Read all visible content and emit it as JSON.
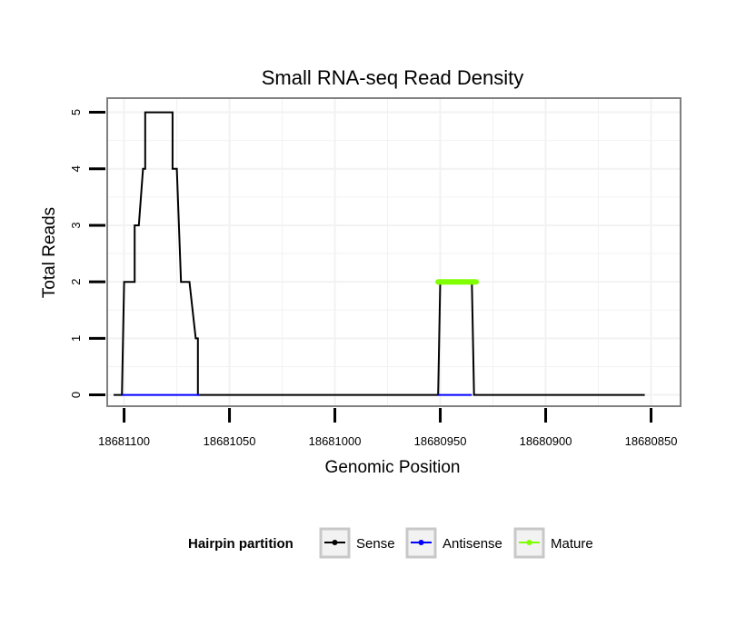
{
  "chart_data": {
    "type": "line",
    "title": "Small RNA-seq Read Density",
    "xlabel": "Genomic Position",
    "ylabel": "Total Reads",
    "xlim": [
      18681108,
      18680836
    ],
    "ylim": [
      -0.2,
      5.25
    ],
    "x_reversed": true,
    "xticks": [
      18681100,
      18681050,
      18681000,
      18680950,
      18680900,
      18680850
    ],
    "xtick_labels": [
      "18681100",
      "18681050",
      "18681000",
      "18680950",
      "18680900",
      "18680850"
    ],
    "yticks": [
      0,
      1,
      2,
      3,
      4,
      5
    ],
    "ytick_labels": [
      "0",
      "1",
      "2",
      "3",
      "4",
      "5"
    ],
    "grid": true,
    "legend": {
      "title": "Hairpin partition",
      "position": "bottom",
      "entries": [
        {
          "name": "Sense",
          "color": "#000000"
        },
        {
          "name": "Antisense",
          "color": "#0000ff"
        },
        {
          "name": "Mature",
          "color": "#7fff00"
        }
      ]
    },
    "series": [
      {
        "name": "Sense",
        "color": "#000000",
        "x": [
          18681105,
          18681101,
          18681100,
          18681097,
          18681097,
          18681095,
          18681095,
          18681093,
          18681093,
          18681091,
          18681091,
          18681090,
          18681090,
          18681088,
          18681088,
          18681077,
          18681077,
          18681075,
          18681075,
          18681073,
          18681073,
          18681071,
          18681071,
          18681069,
          18681069,
          18681066,
          18681066,
          18681065,
          18681065,
          18681063,
          18681063,
          18681050,
          18681000,
          18680951,
          18680950,
          18680935,
          18680934,
          18680900,
          18680853
        ],
        "y": [
          0,
          0,
          2,
          2,
          2,
          2,
          3,
          3,
          3,
          4,
          4,
          4,
          5,
          5,
          5,
          5,
          4,
          4,
          4,
          2,
          2,
          2,
          2,
          2,
          2,
          1,
          1,
          1,
          0,
          0,
          0,
          0,
          0,
          0,
          2,
          2,
          0,
          0,
          0
        ]
      },
      {
        "name": "Antisense",
        "color": "#0000ff",
        "x": [
          18681101,
          18681064
        ],
        "y": [
          0,
          0
        ]
      },
      {
        "name": "Antisense",
        "color": "#0000ff",
        "x": [
          18680951,
          18680935
        ],
        "y": [
          0,
          0
        ]
      },
      {
        "name": "Mature",
        "color": "#7fff00",
        "x": [
          18680951,
          18680933
        ],
        "y": [
          2,
          2
        ]
      }
    ]
  }
}
